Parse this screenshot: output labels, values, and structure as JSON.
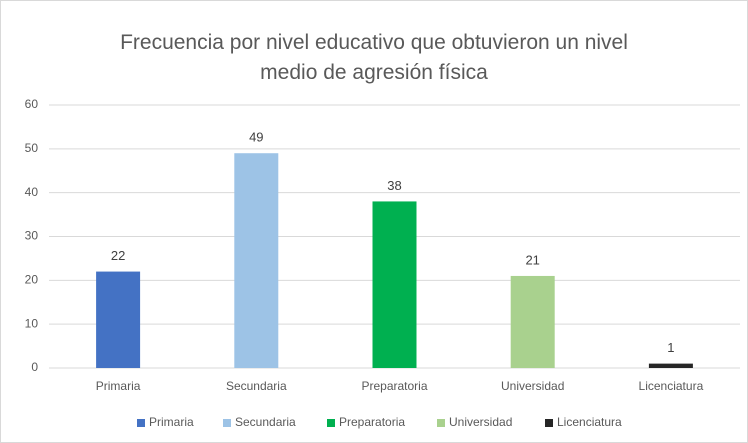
{
  "chart_data": {
    "type": "bar",
    "title": "Frecuencia por nivel educativo que obtuvieron un nivel medio de agresión física",
    "categories": [
      "Primaria",
      "Secundaria",
      "Preparatoria",
      "Universidad",
      "Licenciatura"
    ],
    "values": [
      22,
      49,
      38,
      21,
      1
    ],
    "colors": [
      "#4472c4",
      "#9dc3e6",
      "#00b050",
      "#a9d18e",
      "#262626"
    ],
    "ylim": [
      0,
      60
    ],
    "yticks": [
      0,
      10,
      20,
      30,
      40,
      50,
      60
    ],
    "grid": true,
    "legend": "bottom"
  }
}
